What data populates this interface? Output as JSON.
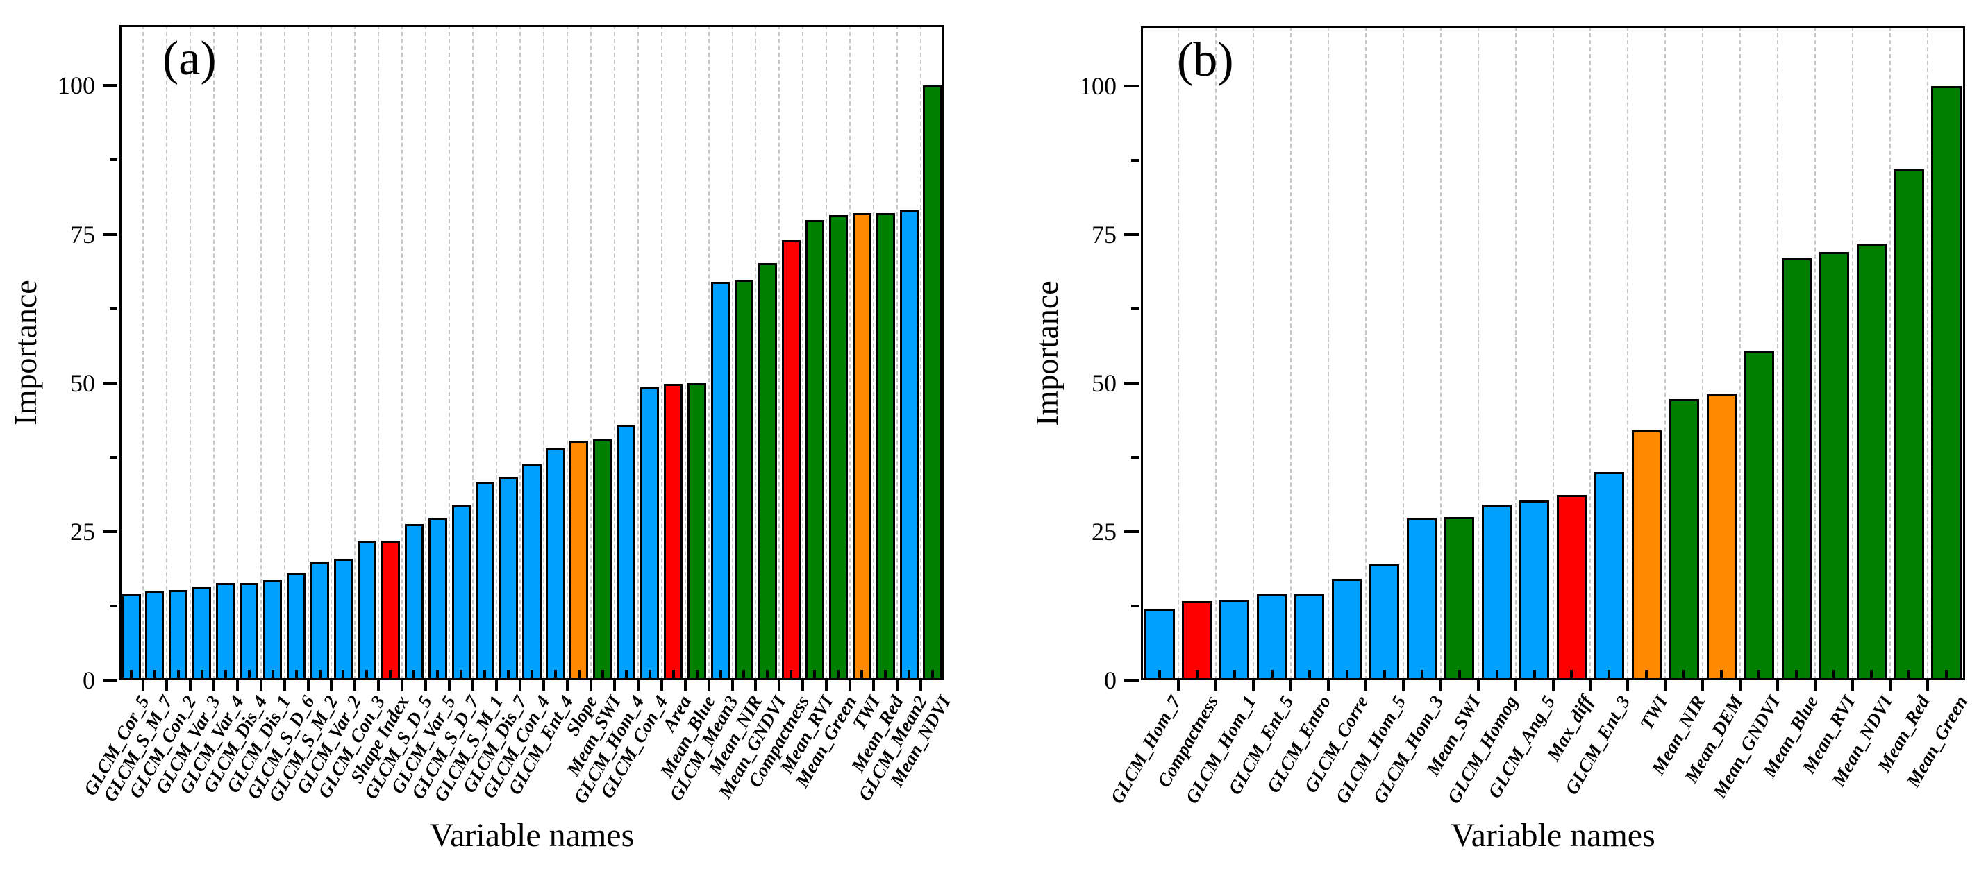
{
  "palette": {
    "blue": "#00A0FF",
    "red": "#FF0000",
    "green": "#008000",
    "orange": "#FF8A00",
    "axis": "#000000",
    "grid": "#C6C6C6",
    "background": "#FFFFFF"
  },
  "chart_data": [
    {
      "type": "bar",
      "tag": "(a)",
      "ylabel": "Importance",
      "xlabel": "Variable names",
      "ylim": [
        0,
        110.2
      ],
      "yticks_major": [
        0,
        25,
        50,
        75,
        100
      ],
      "yticks_minor": [
        12.5,
        37.5,
        62.5,
        87.5
      ],
      "grid": "vertical-dashed-between-categories",
      "legend": "none",
      "categories": [
        "GLCM_Cor_5",
        "GLCM_S_M_7",
        "GLCM_Con_2",
        "GLCM_Var_3",
        "GLCM_Var_4",
        "GLCM_Dis_4",
        "GLCM_Dis_1",
        "GLCM_S_D_6",
        "GLCM_S_M_2",
        "GLCM_Var_2",
        "GLCM_Con_3",
        "Shape Index",
        "GLCM_S_D_5",
        "GLCM_Var_5",
        "GLCM_S_D_7",
        "GLCM_S_M_1",
        "GLCM_Dis_7",
        "GLCM_Con_4",
        "GLCM_Ent_4",
        "Slope",
        "Mean_SWI",
        "GLCM_Hom_4",
        "GLCM_Con_4",
        "Area",
        "Mean_Blue",
        "GLCM_Mean3",
        "Mean_NIR",
        "Mean_GNDVI",
        "Compactness",
        "Mean_RVI",
        "Mean_Green",
        "TWI",
        "Mean_Red",
        "GLCM_Mean2",
        "Mean_NDVI"
      ],
      "values": [
        14.5,
        15,
        15.2,
        15.8,
        16.4,
        16.4,
        16.8,
        18,
        20,
        20.4,
        23.4,
        23.5,
        26.3,
        27.3,
        29.4,
        33.3,
        34.2,
        36.3,
        39,
        40.3,
        40.5,
        43,
        49.3,
        49.8,
        50,
        67,
        67.4,
        70.2,
        74,
        77.4,
        78.2,
        78.6,
        78.6,
        79,
        100
      ],
      "colors": [
        "blue",
        "blue",
        "blue",
        "blue",
        "blue",
        "blue",
        "blue",
        "blue",
        "blue",
        "blue",
        "blue",
        "red",
        "blue",
        "blue",
        "blue",
        "blue",
        "blue",
        "blue",
        "blue",
        "orange",
        "green",
        "blue",
        "blue",
        "red",
        "green",
        "blue",
        "green",
        "green",
        "red",
        "green",
        "green",
        "orange",
        "green",
        "blue",
        "green"
      ]
    },
    {
      "type": "bar",
      "tag": "(b)",
      "ylabel": "Importance",
      "xlabel": "Variable names",
      "ylim": [
        0,
        110.0
      ],
      "yticks_major": [
        0,
        25,
        50,
        75,
        100
      ],
      "yticks_minor": [
        12.5,
        37.5,
        62.5,
        87.5
      ],
      "grid": "vertical-dashed-between-categories",
      "legend": "none",
      "categories": [
        "GLCM_Hom_7",
        "Compactness",
        "GLCM_Hom_1",
        "GLCM_Ent_5",
        "GLCM_Entro",
        "GLCM_Corre",
        "GLCM_Hom_5",
        "GLCM_Hom_3",
        "Mean_SWI",
        "GLCM_Homog",
        "GLCM_Ang_5",
        "Max_diff",
        "GLCM_Ent_3",
        "TWI",
        "Mean_NIR",
        "Mean_DEM",
        "Mean_GNDVI",
        "Mean_Blue",
        "Mean_RVI",
        "Mean_NDVI",
        "Mean_Red",
        "Mean_Green"
      ],
      "values": [
        12,
        13.3,
        13.6,
        14.5,
        14.5,
        17,
        19.5,
        27.3,
        27.4,
        29.5,
        30.2,
        31.2,
        35,
        42,
        47.3,
        48.2,
        55.5,
        71,
        72,
        73.5,
        86,
        100
      ],
      "colors": [
        "blue",
        "red",
        "blue",
        "blue",
        "blue",
        "blue",
        "blue",
        "blue",
        "green",
        "blue",
        "blue",
        "red",
        "blue",
        "orange",
        "green",
        "orange",
        "green",
        "green",
        "green",
        "green",
        "green",
        "green"
      ]
    }
  ]
}
